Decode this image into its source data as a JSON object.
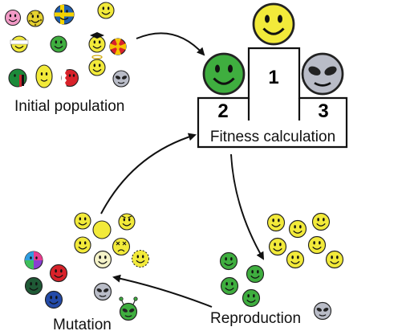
{
  "labels": {
    "initial_population": "Initial population",
    "fitness_calculation": "Fitness calculation",
    "reproduction": "Reproduction",
    "mutation": "Mutation"
  },
  "podium": {
    "first": "1",
    "second": "2",
    "third": "3"
  },
  "colors": {
    "yellow": "#f2ea3a",
    "green": "#3fae3f",
    "grey": "#b9bcc7",
    "pale": "#f4f2c8",
    "arrow": "#111111"
  },
  "icons": {
    "individual": "smiley-icon",
    "alien": "alien-icon",
    "cycle_arrow": "curved-arrow-icon"
  }
}
